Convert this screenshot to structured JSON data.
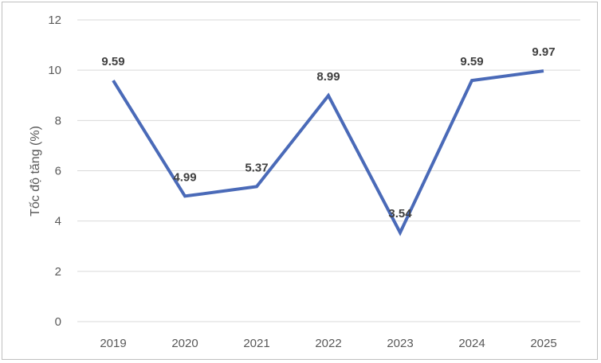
{
  "chart_data": {
    "type": "line",
    "categories": [
      "2019",
      "2020",
      "2021",
      "2022",
      "2023",
      "2024",
      "2025"
    ],
    "series": [
      {
        "values": [
          9.59,
          4.99,
          5.37,
          8.99,
          3.54,
          9.59,
          9.97
        ]
      }
    ],
    "data_labels": [
      "9.59",
      "4.99",
      "5.37",
      "8.99",
      "3.54",
      "9.59",
      "9.97"
    ],
    "ylabel": "Tốc độ tăng (%)",
    "xlabel": "",
    "ylim": [
      0,
      12
    ],
    "yticks": [
      "0",
      "2",
      "4",
      "6",
      "8",
      "10",
      "12"
    ],
    "grid": true,
    "legend": "none",
    "colors": {
      "line": "#4a6ab8",
      "grid": "#d9d9d9",
      "border": "#bfbfbf"
    }
  }
}
